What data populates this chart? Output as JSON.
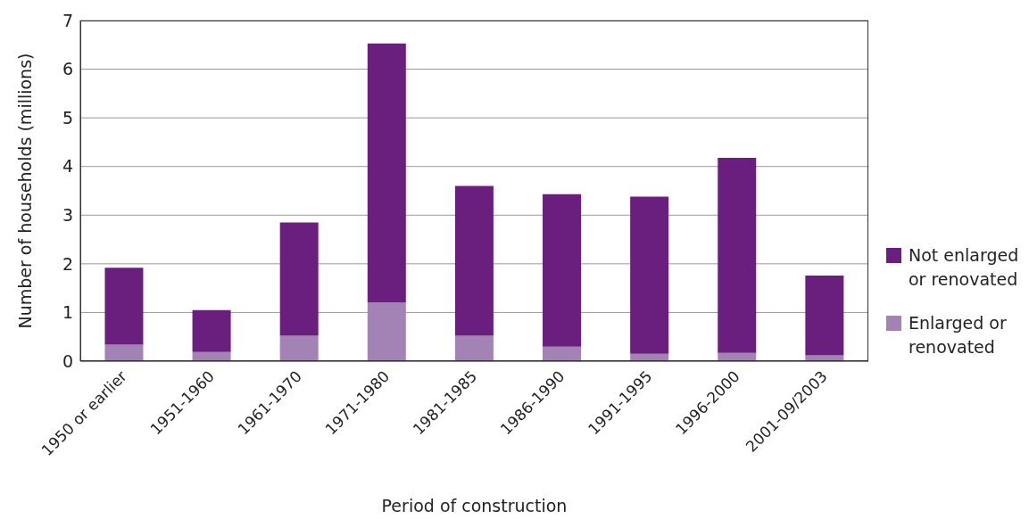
{
  "chart_data": {
    "type": "bar",
    "stacked": true,
    "xlabel": "Period of construction",
    "ylabel": "Number of households (millions)",
    "categories": [
      "1950 or earlier",
      "1951-1960",
      "1961-1970",
      "1971-1980",
      "1981-1985",
      "1986-1990",
      "1991-1995",
      "1996-2000",
      "2001-09/2003"
    ],
    "series": [
      {
        "name": "Enlarged or renovated",
        "color": "#a383b5",
        "values": [
          0.34,
          0.19,
          0.52,
          1.21,
          0.52,
          0.3,
          0.15,
          0.17,
          0.12
        ]
      },
      {
        "name": "Not enlarged or renovated",
        "color": "#6a1f7e",
        "values": [
          1.58,
          0.86,
          2.33,
          5.32,
          3.08,
          3.13,
          3.23,
          4.01,
          1.64
        ]
      }
    ],
    "ylim": [
      0,
      7
    ],
    "yticks": [
      0,
      1,
      2,
      3,
      4,
      5,
      6,
      7
    ],
    "grid": "y",
    "legend": "right"
  }
}
